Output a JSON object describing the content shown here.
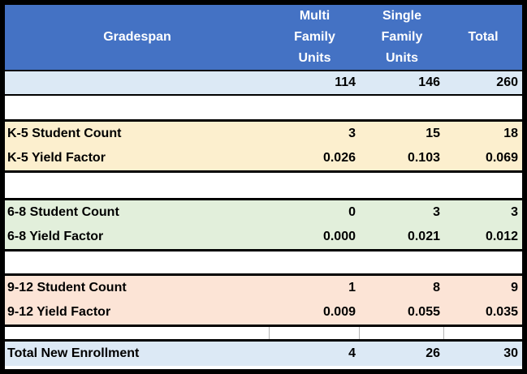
{
  "header": {
    "columns": [
      "Gradespan",
      "Multi\nFamily\nUnits",
      "Single\nFamily\nUnits",
      "Total"
    ]
  },
  "rows": {
    "units": {
      "label": "",
      "multi": "114",
      "single": "146",
      "total": "260"
    },
    "k5_count": {
      "label": "K-5 Student Count",
      "multi": "3",
      "single": "15",
      "total": "18"
    },
    "k5_yield": {
      "label": "K-5 Yield Factor",
      "multi": "0.026",
      "single": "0.103",
      "total": "0.069"
    },
    "g68_count": {
      "label": "6-8 Student Count",
      "multi": "0",
      "single": "3",
      "total": "3"
    },
    "g68_yield": {
      "label": "6-8 Yield Factor",
      "multi": "0.000",
      "single": "0.021",
      "total": "0.012"
    },
    "g912_count": {
      "label": "9-12 Student Count",
      "multi": "1",
      "single": "8",
      "total": "9"
    },
    "g912_yield": {
      "label": "9-12 Yield Factor",
      "multi": "0.009",
      "single": "0.055",
      "total": "0.035"
    },
    "total": {
      "label": "Total New Enrollment",
      "multi": "4",
      "single": "26",
      "total": "30"
    }
  },
  "colors": {
    "header_bg": "#4472C4",
    "header_text": "#FFFFFF",
    "blue_row_bg": "#DCE9F5",
    "k5_row_bg": "#FCEFCE",
    "grade68_row_bg": "#E2EFDB",
    "grade912_row_bg": "#FCE4D6",
    "border": "#000000"
  }
}
